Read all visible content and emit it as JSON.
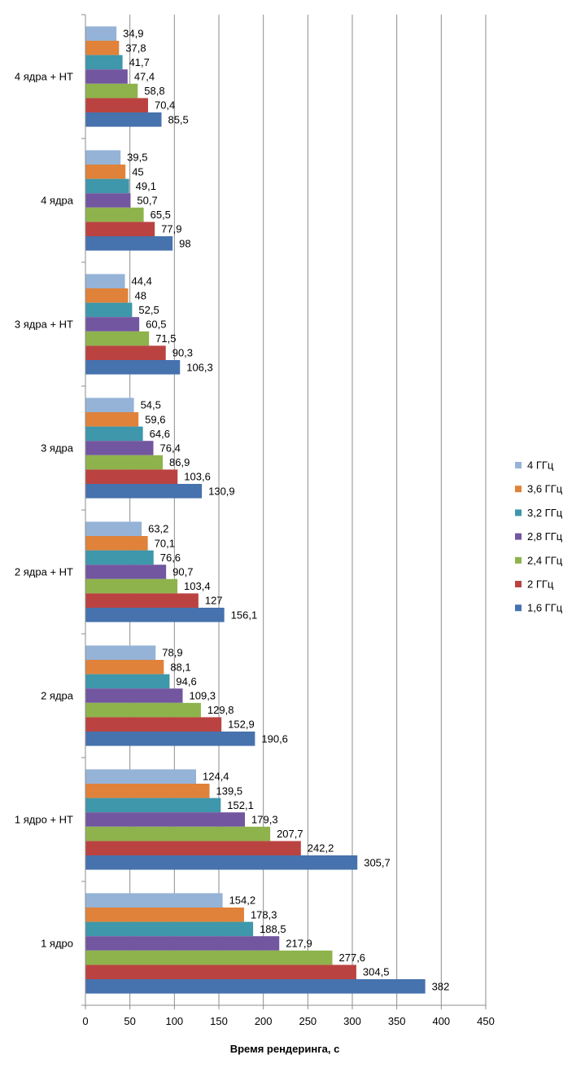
{
  "chart_data": {
    "type": "bar",
    "orientation": "horizontal",
    "categories": [
      "4 ядра + HT",
      "4 ядра",
      "3 ядра + HT",
      "3 ядра",
      "2 ядра + HT",
      "2 ядра",
      "1 ядро + HT",
      "1 ядро"
    ],
    "series": [
      {
        "name": "4 ГГц",
        "color": "#95B3D7",
        "values": [
          34.9,
          39.5,
          44.4,
          54.5,
          63.2,
          78.9,
          124.4,
          154.2
        ],
        "labels": [
          "34,9",
          "39,5",
          "44,4",
          "54,5",
          "63,2",
          "78,9",
          "124,4",
          "154,2"
        ]
      },
      {
        "name": "3,6 ГГц",
        "color": "#E0823A",
        "values": [
          37.8,
          45,
          48,
          59.6,
          70.1,
          88.1,
          139.5,
          178.3
        ],
        "labels": [
          "37,8",
          "45",
          "48",
          "59,6",
          "70,1",
          "88,1",
          "139,5",
          "178,3"
        ]
      },
      {
        "name": "3,2 ГГц",
        "color": "#3E97AA",
        "values": [
          41.7,
          49.1,
          52.5,
          64.6,
          76.6,
          94.6,
          152.1,
          188.5
        ],
        "labels": [
          "41,7",
          "49,1",
          "52,5",
          "64,6",
          "76,6",
          "94,6",
          "152,1",
          "188,5"
        ]
      },
      {
        "name": "2,8 ГГц",
        "color": "#7256A0",
        "values": [
          47.4,
          50.7,
          60.5,
          76.4,
          90.7,
          109.3,
          179.3,
          217.9
        ],
        "labels": [
          "47,4",
          "50,7",
          "60,5",
          "76,4",
          "90,7",
          "109,3",
          "179,3",
          "217,9"
        ]
      },
      {
        "name": "2,4 ГГц",
        "color": "#8EB34C",
        "values": [
          58.8,
          65.5,
          71.5,
          86.9,
          103.4,
          129.8,
          207.7,
          277.6
        ],
        "labels": [
          "58,8",
          "65,5",
          "71,5",
          "86,9",
          "103,4",
          "129,8",
          "207,7",
          "277,6"
        ]
      },
      {
        "name": "2 ГГц",
        "color": "#BA4341",
        "values": [
          70.4,
          77.9,
          90.3,
          103.6,
          127,
          152.9,
          242.2,
          304.5
        ],
        "labels": [
          "70,4",
          "77,9",
          "90,3",
          "103,6",
          "127",
          "152,9",
          "242,2",
          "304,5"
        ]
      },
      {
        "name": "1,6 ГГц",
        "color": "#4672AE",
        "values": [
          85.5,
          98,
          106.3,
          130.9,
          156.1,
          190.6,
          305.7,
          382
        ],
        "labels": [
          "85,5",
          "98",
          "106,3",
          "130,9",
          "156,1",
          "190,6",
          "305,7",
          "382"
        ]
      }
    ],
    "xlabel": "Время рендеринга, с",
    "xlim": [
      0,
      450
    ],
    "xticks": [
      0,
      50,
      100,
      150,
      200,
      250,
      300,
      350,
      400,
      450
    ],
    "grid": true,
    "legend_position": "right"
  }
}
